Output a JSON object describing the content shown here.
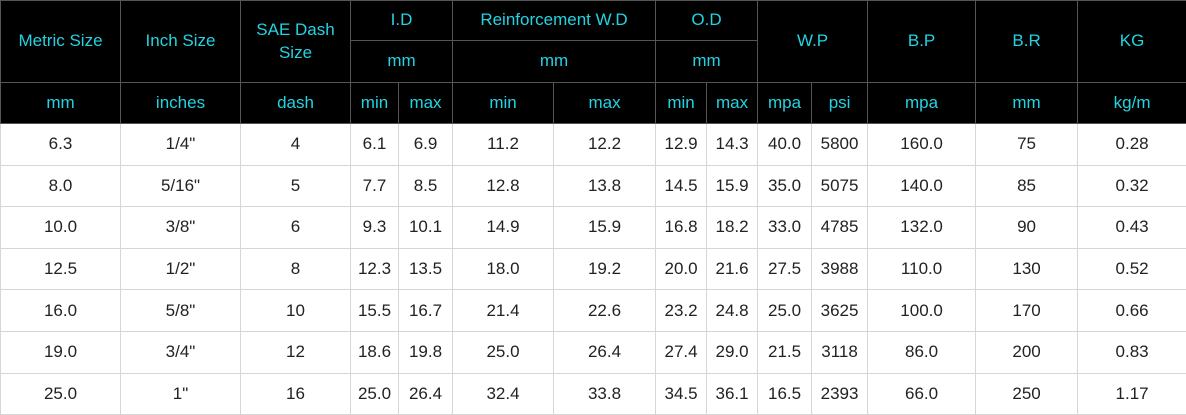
{
  "table": {
    "headers": [
      "Metric Size",
      "Inch Size",
      "SAE Dash Size",
      "I.D",
      "Reinforcement W.D",
      "O.D",
      "W.P",
      "B.P",
      "B.R",
      "KG"
    ],
    "group_units": [
      "mm",
      "mm",
      "mm"
    ],
    "units": [
      "mm",
      "inches",
      "dash",
      "min",
      "max",
      "min",
      "max",
      "min",
      "max",
      "mpa",
      "psi",
      "mpa",
      "mm",
      "kg/m"
    ],
    "rows": [
      [
        "6.3",
        "1/4\"",
        "4",
        "6.1",
        "6.9",
        "11.2",
        "12.2",
        "12.9",
        "14.3",
        "40.0",
        "5800",
        "160.0",
        "75",
        "0.28"
      ],
      [
        "8.0",
        "5/16\"",
        "5",
        "7.7",
        "8.5",
        "12.8",
        "13.8",
        "14.5",
        "15.9",
        "35.0",
        "5075",
        "140.0",
        "85",
        "0.32"
      ],
      [
        "10.0",
        "3/8\"",
        "6",
        "9.3",
        "10.1",
        "14.9",
        "15.9",
        "16.8",
        "18.2",
        "33.0",
        "4785",
        "132.0",
        "90",
        "0.43"
      ],
      [
        "12.5",
        "1/2\"",
        "8",
        "12.3",
        "13.5",
        "18.0",
        "19.2",
        "20.0",
        "21.6",
        "27.5",
        "3988",
        "110.0",
        "130",
        "0.52"
      ],
      [
        "16.0",
        "5/8\"",
        "10",
        "15.5",
        "16.7",
        "21.4",
        "22.6",
        "23.2",
        "24.8",
        "25.0",
        "3625",
        "100.0",
        "170",
        "0.66"
      ],
      [
        "19.0",
        "3/4\"",
        "12",
        "18.6",
        "19.8",
        "25.0",
        "26.4",
        "27.4",
        "29.0",
        "21.5",
        "3118",
        "86.0",
        "200",
        "0.83"
      ],
      [
        "25.0",
        "1\"",
        "16",
        "25.0",
        "26.4",
        "32.4",
        "33.8",
        "34.5",
        "36.1",
        "16.5",
        "2393",
        "66.0",
        "250",
        "1.17"
      ]
    ]
  }
}
